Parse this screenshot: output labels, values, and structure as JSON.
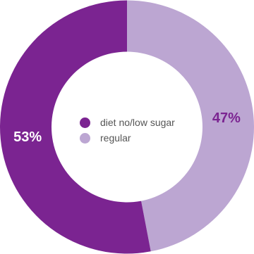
{
  "chart_data": {
    "type": "pie",
    "variant": "donut",
    "slices": [
      {
        "label": "regular",
        "value": 47,
        "display": "47%",
        "color": "#bca6d2",
        "label_color": "#7b2491"
      },
      {
        "label": "diet no/low sugar",
        "value": 53,
        "display": "53%",
        "color": "#7b2491",
        "label_color": "#ffffff"
      }
    ],
    "legend": {
      "placement": "center",
      "entries": [
        {
          "label": "diet no/low sugar",
          "color": "#7b2491"
        },
        {
          "label": "regular",
          "color": "#bca6d2"
        }
      ]
    }
  }
}
